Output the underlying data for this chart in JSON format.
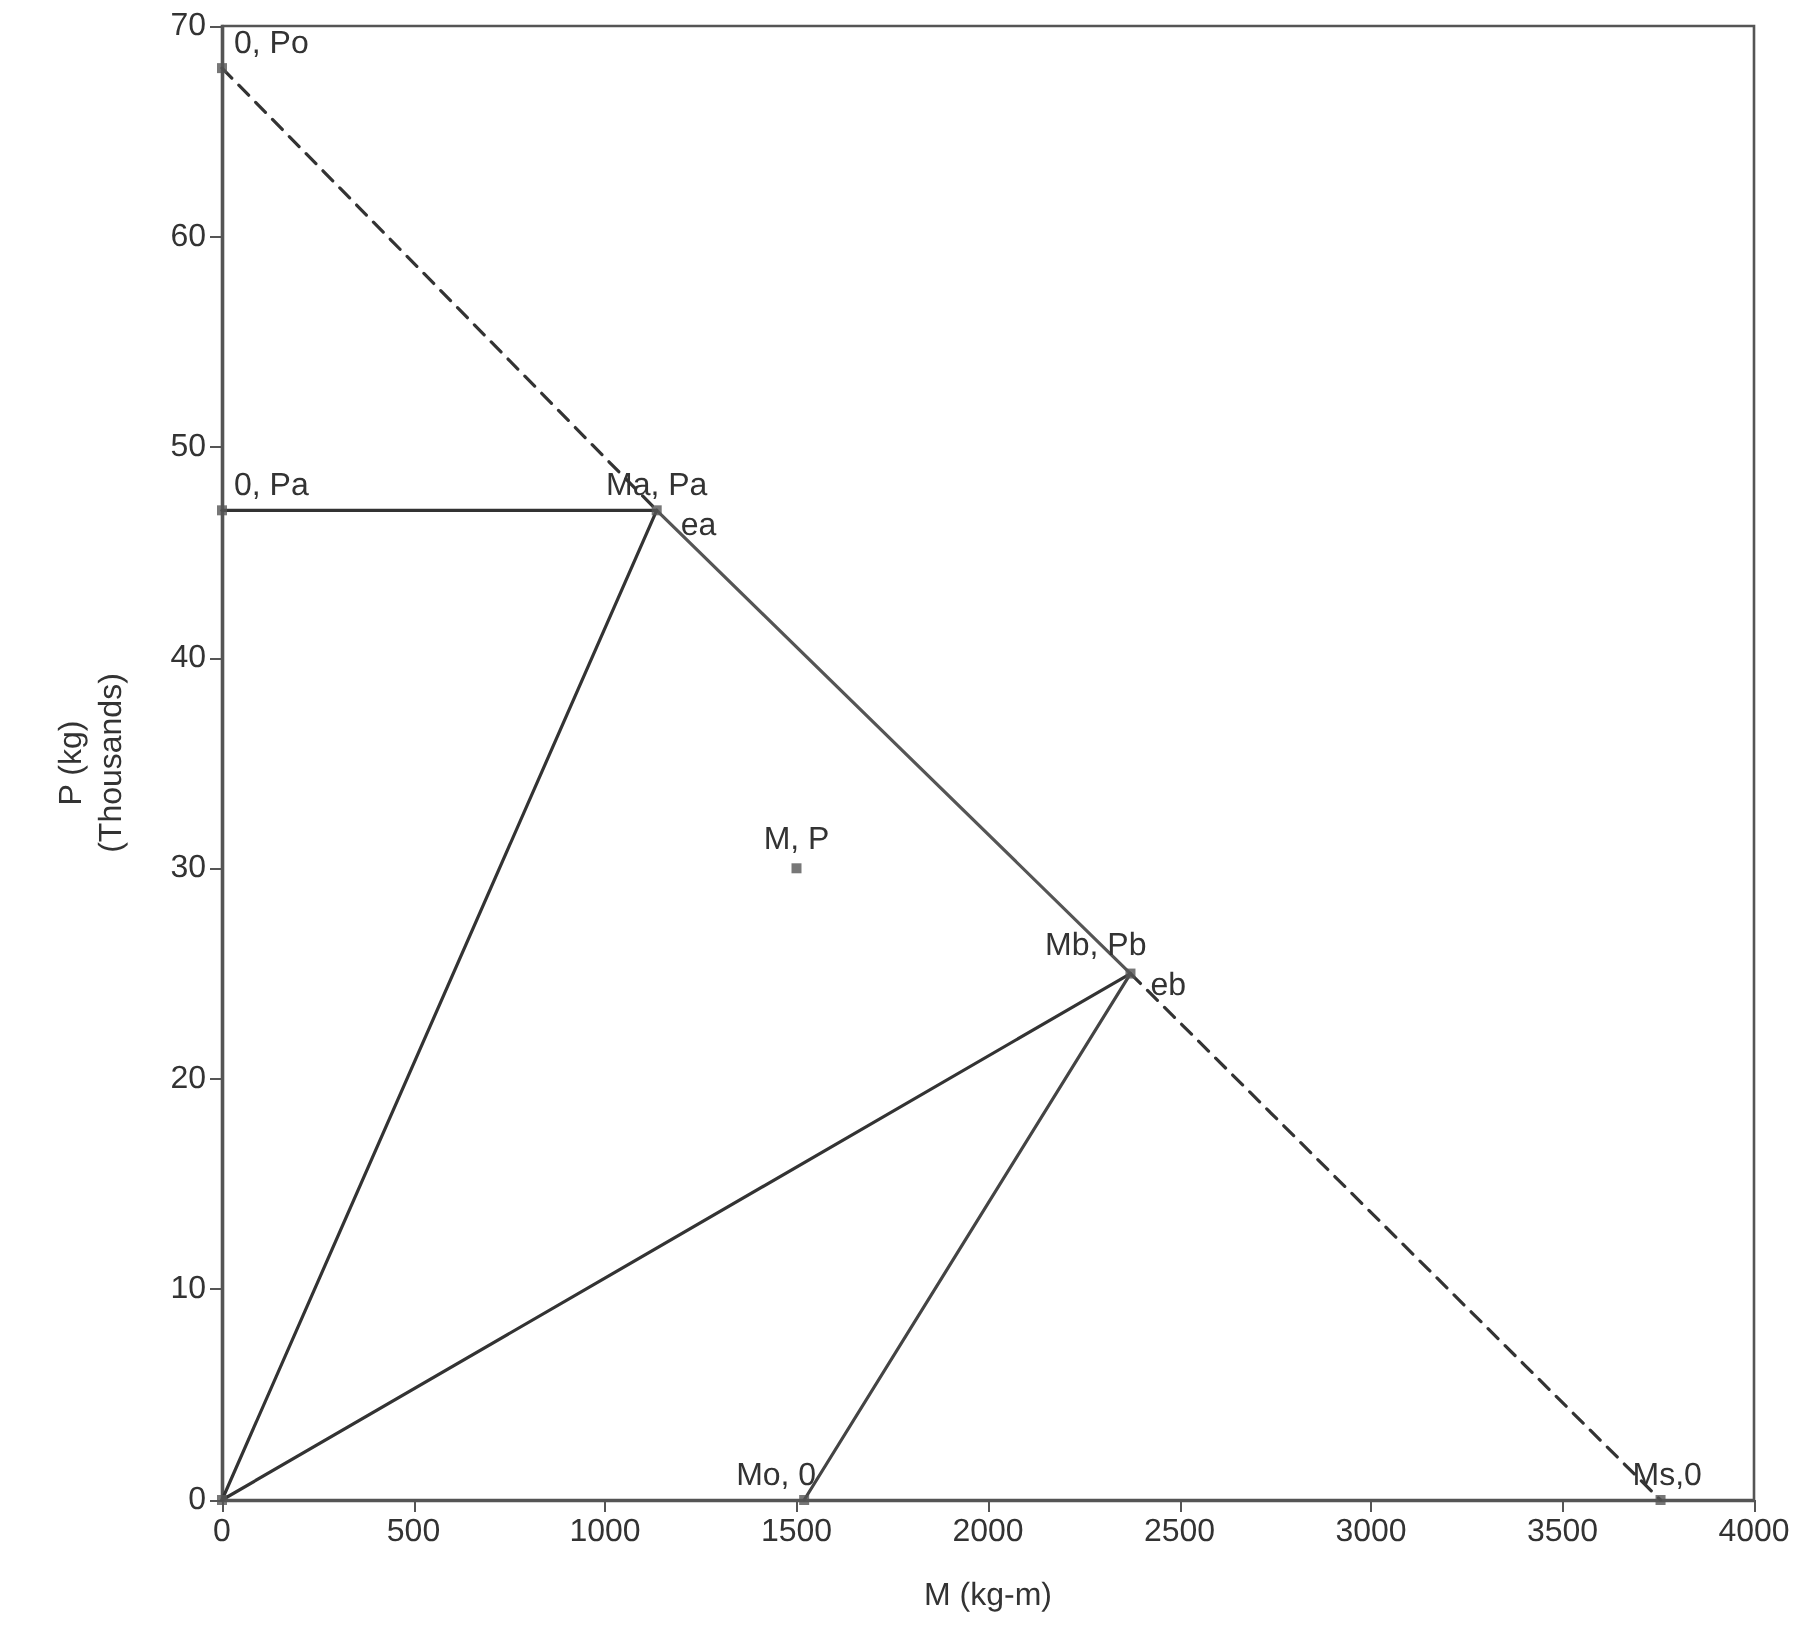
{
  "chart_data": {
    "type": "line",
    "xlabel": "M (kg-m)",
    "ylabel": "P (kg)\n(Thousands)",
    "xlim": [
      0,
      4000
    ],
    "ylim": [
      0,
      70
    ],
    "xticks": [
      0,
      500,
      1000,
      1500,
      2000,
      2500,
      3000,
      3500,
      4000
    ],
    "yticks": [
      0,
      10,
      20,
      30,
      40,
      50,
      60,
      70
    ],
    "grid": false,
    "series": [
      {
        "color": "#333333",
        "line_style": "solid",
        "marker": "none",
        "x": [
          0,
          1135
        ],
        "values": [
          47,
          47
        ]
      },
      {
        "color": "#333333",
        "line_style": "dashed",
        "marker": "none",
        "x": [
          0,
          1135
        ],
        "values": [
          68,
          47
        ]
      },
      {
        "color": "#555555",
        "line_style": "solid",
        "marker": "none",
        "x": [
          1135,
          2372
        ],
        "values": [
          47,
          25
        ]
      },
      {
        "color": "#333333",
        "line_style": "dashed",
        "marker": "none",
        "x": [
          2372,
          3756
        ],
        "values": [
          25,
          0
        ]
      },
      {
        "color": "#333333",
        "line_style": "solid",
        "marker": "none",
        "x": [
          0,
          1135
        ],
        "values": [
          0,
          47
        ]
      },
      {
        "color": "#333333",
        "line_style": "solid",
        "marker": "none",
        "x": [
          0,
          2372
        ],
        "values": [
          0,
          25
        ]
      },
      {
        "color": "#444444",
        "line_style": "solid",
        "marker": "none",
        "x": [
          1520,
          2372
        ],
        "values": [
          0,
          25
        ]
      },
      {
        "type": "scatter",
        "color": "#555555",
        "marker": "square",
        "x": [
          0,
          0,
          0,
          1135,
          1500,
          2372,
          1520,
          3756
        ],
        "values": [
          0,
          68,
          47,
          47,
          30,
          25,
          0,
          0
        ]
      }
    ],
    "annotations": [
      {
        "text": "0, Po",
        "x": 0,
        "y": 68
      },
      {
        "text": "0, Pa",
        "x": 0,
        "y": 47
      },
      {
        "text": "Ma, Pa",
        "x": 1135,
        "y": 47
      },
      {
        "text": "ea",
        "x": 1135,
        "y": 47
      },
      {
        "text": "M, P",
        "x": 1500,
        "y": 30
      },
      {
        "text": "Mb, Pb",
        "x": 2372,
        "y": 25
      },
      {
        "text": "eb",
        "x": 2372,
        "y": 25
      },
      {
        "text": "Mo, 0",
        "x": 1520,
        "y": 0
      },
      {
        "text": "Ms,0",
        "x": 3756,
        "y": 0
      }
    ]
  }
}
